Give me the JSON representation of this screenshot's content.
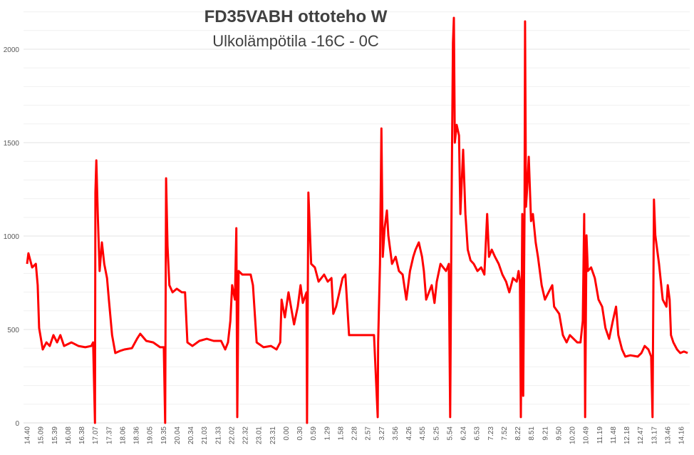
{
  "chart_data": {
    "type": "line",
    "title": "FD35VABH ottoteho W",
    "subtitle": "Ulkolämpötila -16C - 0C",
    "xlabel": "",
    "ylabel": "",
    "ylim": [
      0,
      2200
    ],
    "yticks": [
      0,
      500,
      1000,
      1500,
      2000
    ],
    "grid": true,
    "line_color": "#ff0000",
    "x_tick_labels": [
      "14.40",
      "15.09",
      "15.39",
      "16.08",
      "16.38",
      "17.07",
      "17.37",
      "18.06",
      "18.36",
      "19.05",
      "19.35",
      "20.04",
      "20.34",
      "21.03",
      "21.33",
      "22.02",
      "22.32",
      "23.01",
      "23.31",
      "0.00",
      "0.30",
      "0.59",
      "1.29",
      "1.58",
      "2.28",
      "2.57",
      "3.27",
      "3.56",
      "4.26",
      "4.55",
      "5.25",
      "5.54",
      "6.24",
      "6.53",
      "7.23",
      "7.52",
      "8.22",
      "8.51",
      "9.21",
      "9.50",
      "10.20",
      "10.49",
      "11.19",
      "11.48",
      "12.18",
      "12.47",
      "13.17",
      "13.46",
      "14.16"
    ],
    "series": [
      {
        "points": [
          [
            "14.40",
            851
          ],
          [
            "14.43",
            908
          ],
          [
            "14.51",
            832
          ],
          [
            "14.59",
            851
          ],
          [
            "15.03",
            737
          ],
          [
            "15.06",
            508
          ],
          [
            "15.14",
            393
          ],
          [
            "15.22",
            431
          ],
          [
            "15.29",
            412
          ],
          [
            "15.37",
            470
          ],
          [
            "15.45",
            431
          ],
          [
            "15.52",
            470
          ],
          [
            "16.00",
            412
          ],
          [
            "16.16",
            431
          ],
          [
            "16.31",
            412
          ],
          [
            "16.46",
            405
          ],
          [
            "16.59",
            412
          ],
          [
            "17.03",
            431
          ],
          [
            "17.07",
            0
          ],
          [
            "17.08",
            1233
          ],
          [
            "17.10",
            1405
          ],
          [
            "17.13",
            1118
          ],
          [
            "17.17",
            813
          ],
          [
            "17.22",
            966
          ],
          [
            "17.27",
            851
          ],
          [
            "17.33",
            775
          ],
          [
            "17.37",
            660
          ],
          [
            "17.44",
            470
          ],
          [
            "17.51",
            374
          ],
          [
            "18.01",
            385
          ],
          [
            "18.11",
            393
          ],
          [
            "18.27",
            400
          ],
          [
            "18.38",
            450
          ],
          [
            "18.45",
            477
          ],
          [
            "18.58",
            439
          ],
          [
            "19.13",
            431
          ],
          [
            "19.28",
            405
          ],
          [
            "19.36",
            405
          ],
          [
            "19.39",
            0
          ],
          [
            "19.41",
            1309
          ],
          [
            "19.44",
            947
          ],
          [
            "19.48",
            737
          ],
          [
            "19.55",
            699
          ],
          [
            "20.04",
            718
          ],
          [
            "20.15",
            699
          ],
          [
            "20.22",
            699
          ],
          [
            "20.27",
            431
          ],
          [
            "20.38",
            412
          ],
          [
            "20.53",
            439
          ],
          [
            "21.09",
            450
          ],
          [
            "21.24",
            439
          ],
          [
            "21.40",
            439
          ],
          [
            "21.49",
            393
          ],
          [
            "21.55",
            431
          ],
          [
            "22.00",
            546
          ],
          [
            "22.04",
            737
          ],
          [
            "22.10",
            660
          ],
          [
            "22.13",
            1042
          ],
          [
            "22.15",
            31
          ],
          [
            "22.18",
            813
          ],
          [
            "22.26",
            794
          ],
          [
            "22.34",
            794
          ],
          [
            "22.44",
            794
          ],
          [
            "22.49",
            737
          ],
          [
            "22.57",
            431
          ],
          [
            "23.12",
            405
          ],
          [
            "23.28",
            412
          ],
          [
            "23.40",
            393
          ],
          [
            "23.48",
            431
          ],
          [
            "23.51",
            660
          ],
          [
            "23.58",
            565
          ],
          [
            "0.06",
            699
          ],
          [
            "0.14",
            584
          ],
          [
            "0.18",
            527
          ],
          [
            "0.26",
            622
          ],
          [
            "0.32",
            737
          ],
          [
            "0.37",
            642
          ],
          [
            "0.45",
            699
          ],
          [
            "0.46",
            0
          ],
          [
            "0.49",
            1233
          ],
          [
            "0.55",
            851
          ],
          [
            "1.03",
            832
          ],
          [
            "1.11",
            756
          ],
          [
            "1.23",
            794
          ],
          [
            "1.31",
            756
          ],
          [
            "1.39",
            775
          ],
          [
            "1.43",
            584
          ],
          [
            "1.49",
            622
          ],
          [
            "1.56",
            699
          ],
          [
            "2.03",
            775
          ],
          [
            "2.09",
            794
          ],
          [
            "2.17",
            470
          ],
          [
            "2.40",
            470
          ],
          [
            "3.11",
            470
          ],
          [
            "3.19",
            31
          ],
          [
            "3.20",
            431
          ],
          [
            "3.24",
            851
          ],
          [
            "3.27",
            1576
          ],
          [
            "3.30",
            889
          ],
          [
            "3.34",
            1042
          ],
          [
            "3.39",
            1137
          ],
          [
            "3.42",
            1004
          ],
          [
            "3.50",
            851
          ],
          [
            "3.58",
            889
          ],
          [
            "4.05",
            813
          ],
          [
            "4.13",
            794
          ],
          [
            "4.21",
            660
          ],
          [
            "4.29",
            813
          ],
          [
            "4.36",
            889
          ],
          [
            "4.41",
            927
          ],
          [
            "4.48",
            966
          ],
          [
            "4.55",
            889
          ],
          [
            "4.59",
            813
          ],
          [
            "5.04",
            660
          ],
          [
            "5.10",
            699
          ],
          [
            "5.16",
            737
          ],
          [
            "5.22",
            642
          ],
          [
            "5.27",
            756
          ],
          [
            "5.35",
            851
          ],
          [
            "5.41",
            832
          ],
          [
            "5.47",
            813
          ],
          [
            "5.53",
            851
          ],
          [
            "5.56",
            31
          ],
          [
            "5.59",
            1195
          ],
          [
            "6.02",
            2035
          ],
          [
            "6.04",
            2168
          ],
          [
            "6.06",
            1500
          ],
          [
            "6.10",
            1595
          ],
          [
            "6.15",
            1538
          ],
          [
            "6.18",
            1118
          ],
          [
            "6.24",
            1462
          ],
          [
            "6.29",
            1118
          ],
          [
            "6.34",
            927
          ],
          [
            "6.40",
            870
          ],
          [
            "6.47",
            851
          ],
          [
            "6.55",
            813
          ],
          [
            "7.03",
            832
          ],
          [
            "7.10",
            794
          ],
          [
            "7.16",
            1118
          ],
          [
            "7.20",
            889
          ],
          [
            "7.26",
            927
          ],
          [
            "7.33",
            889
          ],
          [
            "7.41",
            851
          ],
          [
            "7.49",
            794
          ],
          [
            "7.57",
            756
          ],
          [
            "8.04",
            699
          ],
          [
            "8.12",
            775
          ],
          [
            "8.20",
            756
          ],
          [
            "8.24",
            813
          ],
          [
            "8.27",
            756
          ],
          [
            "8.29",
            31
          ],
          [
            "8.32",
            1118
          ],
          [
            "8.34",
            145
          ],
          [
            "8.37",
            1157
          ],
          [
            "8.38",
            2149
          ],
          [
            "8.40",
            1157
          ],
          [
            "8.43",
            1271
          ],
          [
            "8.46",
            1424
          ],
          [
            "8.51",
            1080
          ],
          [
            "8.55",
            1118
          ],
          [
            "9.01",
            966
          ],
          [
            "9.06",
            889
          ],
          [
            "9.14",
            737
          ],
          [
            "9.21",
            660
          ],
          [
            "9.29",
            699
          ],
          [
            "9.37",
            737
          ],
          [
            "9.41",
            622
          ],
          [
            "9.52",
            584
          ],
          [
            "10.00",
            470
          ],
          [
            "10.08",
            431
          ],
          [
            "10.15",
            470
          ],
          [
            "10.31",
            431
          ],
          [
            "10.38",
            431
          ],
          [
            "10.43",
            546
          ],
          [
            "10.46",
            1118
          ],
          [
            "10.48",
            31
          ],
          [
            "10.51",
            1004
          ],
          [
            "10.54",
            813
          ],
          [
            "11.01",
            832
          ],
          [
            "11.09",
            775
          ],
          [
            "11.17",
            660
          ],
          [
            "11.25",
            622
          ],
          [
            "11.32",
            508
          ],
          [
            "11.40",
            450
          ],
          [
            "11.48",
            546
          ],
          [
            "11.55",
            622
          ],
          [
            "12.00",
            470
          ],
          [
            "12.08",
            393
          ],
          [
            "12.15",
            355
          ],
          [
            "12.26",
            362
          ],
          [
            "12.42",
            355
          ],
          [
            "12.50",
            374
          ],
          [
            "12.57",
            412
          ],
          [
            "13.05",
            393
          ],
          [
            "13.11",
            355
          ],
          [
            "13.14",
            31
          ],
          [
            "13.17",
            1195
          ],
          [
            "13.20",
            1004
          ],
          [
            "13.28",
            851
          ],
          [
            "13.36",
            660
          ],
          [
            "13.44",
            622
          ],
          [
            "13.47",
            737
          ],
          [
            "13.51",
            660
          ],
          [
            "13.54",
            470
          ],
          [
            "13.59",
            431
          ],
          [
            "14.07",
            393
          ],
          [
            "14.14",
            374
          ],
          [
            "14.22",
            382
          ],
          [
            "14.30",
            374
          ]
        ]
      }
    ]
  }
}
